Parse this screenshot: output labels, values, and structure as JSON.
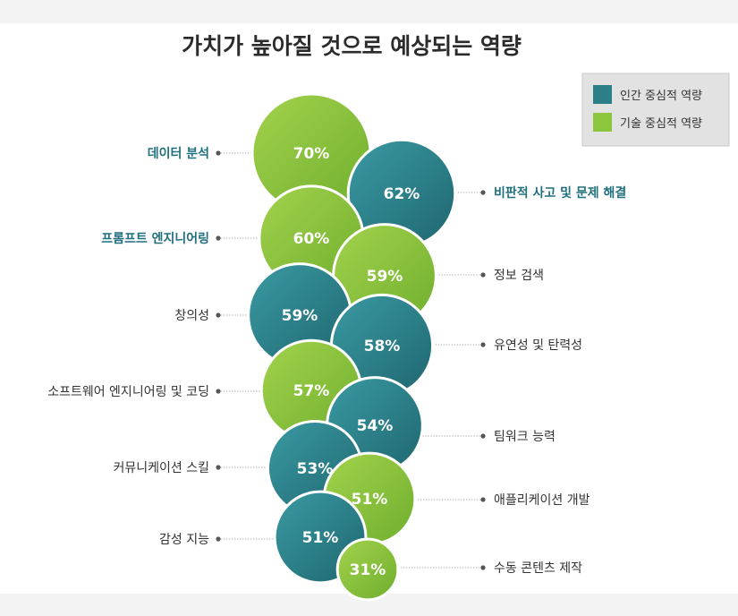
{
  "chart_data": {
    "type": "bubble",
    "title": "가치가 높아질 것으로 예상되는 역량",
    "legend": {
      "placement": "top-right",
      "entries": [
        {
          "name": "인간 중심적 역량",
          "color": "#2c7f87"
        },
        {
          "name": "기술 중심적 역량",
          "color": "#8cc63f"
        }
      ]
    },
    "items": [
      {
        "label": "데이터 분석",
        "value": 70,
        "value_label": "70%",
        "group": "기술 중심적 역량",
        "side": "left",
        "highlight": true
      },
      {
        "label": "비판적 사고 및 문제 해결",
        "value": 62,
        "value_label": "62%",
        "group": "인간 중심적 역량",
        "side": "right",
        "highlight": true
      },
      {
        "label": "프롬프트 엔지니어링",
        "value": 60,
        "value_label": "60%",
        "group": "기술 중심적 역량",
        "side": "left",
        "highlight": true
      },
      {
        "label": "정보 검색",
        "value": 59,
        "value_label": "59%",
        "group": "기술 중심적 역량",
        "side": "right",
        "highlight": false
      },
      {
        "label": "창의성",
        "value": 59,
        "value_label": "59%",
        "group": "인간 중심적 역량",
        "side": "left",
        "highlight": false
      },
      {
        "label": "유연성 및 탄력성",
        "value": 58,
        "value_label": "58%",
        "group": "인간 중심적 역량",
        "side": "right",
        "highlight": false
      },
      {
        "label": "소프트웨어 엔지니어링 및 코딩",
        "value": 57,
        "value_label": "57%",
        "group": "기술 중심적 역량",
        "side": "left",
        "highlight": false
      },
      {
        "label": "팀워크 능력",
        "value": 54,
        "value_label": "54%",
        "group": "인간 중심적 역량",
        "side": "right",
        "highlight": false
      },
      {
        "label": "커뮤니케이션 스킬",
        "value": 53,
        "value_label": "53%",
        "group": "인간 중심적 역량",
        "side": "left",
        "highlight": false
      },
      {
        "label": "애플리케이션 개발",
        "value": 51,
        "value_label": "51%",
        "group": "기술 중심적 역량",
        "side": "right",
        "highlight": false
      },
      {
        "label": "감성 지능",
        "value": 51,
        "value_label": "51%",
        "group": "인간 중심적 역량",
        "side": "left",
        "highlight": false
      },
      {
        "label": "수동 콘텐츠 제작",
        "value": 31,
        "value_label": "31%",
        "group": "기술 중심적 역량",
        "side": "right",
        "highlight": false
      }
    ]
  }
}
